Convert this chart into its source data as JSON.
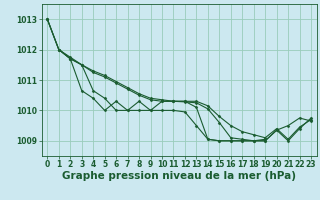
{
  "title": "Graphe pression niveau de la mer (hPa)",
  "bg_color": "#cce8f0",
  "grid_color": "#99ccbb",
  "line_color": "#1a5c30",
  "xlim": [
    -0.5,
    23.5
  ],
  "ylim": [
    1008.5,
    1013.5
  ],
  "yticks": [
    1009,
    1010,
    1011,
    1012,
    1013
  ],
  "xticks": [
    0,
    1,
    2,
    3,
    4,
    5,
    6,
    7,
    8,
    9,
    10,
    11,
    12,
    13,
    14,
    15,
    16,
    17,
    18,
    19,
    20,
    21,
    22,
    23
  ],
  "title_fontsize": 7.5,
  "tick_fontsize": 5.5,
  "lines": [
    {
      "x": [
        0,
        1,
        2,
        3,
        4,
        5,
        6,
        7,
        8,
        9,
        10,
        11,
        12,
        13,
        14,
        15,
        16,
        17,
        18,
        19,
        20,
        21,
        22,
        23
      ],
      "y": [
        1013.0,
        1012.0,
        1011.75,
        1011.5,
        1011.3,
        1011.15,
        1010.95,
        1010.75,
        1010.55,
        1010.4,
        1010.35,
        1010.3,
        1010.3,
        1010.3,
        1010.15,
        1009.8,
        1009.5,
        1009.3,
        1009.2,
        1009.1,
        1009.4,
        1009.05,
        1009.45,
        1009.7
      ]
    },
    {
      "x": [
        0,
        1,
        2,
        3,
        4,
        5,
        6,
        7,
        8,
        9,
        10,
        11,
        12,
        13,
        14,
        15,
        16,
        17,
        18,
        19,
        20,
        21,
        22,
        23
      ],
      "y": [
        1013.0,
        1012.0,
        1011.7,
        1011.5,
        1011.25,
        1011.1,
        1010.9,
        1010.7,
        1010.5,
        1010.35,
        1010.3,
        1010.3,
        1010.28,
        1010.25,
        1010.05,
        1009.6,
        1009.1,
        1009.05,
        1009.0,
        1009.0,
        1009.35,
        1009.0,
        1009.4,
        1009.75
      ]
    },
    {
      "x": [
        0,
        1,
        2,
        3,
        4,
        5,
        6,
        7,
        8,
        9,
        10,
        11,
        12,
        13,
        14,
        15,
        16,
        17,
        18,
        19,
        20,
        21,
        22,
        23
      ],
      "y": [
        1013.0,
        1012.0,
        1011.7,
        1011.5,
        1010.65,
        1010.4,
        1010.0,
        1010.0,
        1010.3,
        1010.0,
        1010.3,
        1010.3,
        1010.3,
        1010.1,
        1009.05,
        1009.0,
        1009.0,
        1009.0,
        1009.0,
        1009.0,
        1009.35,
        1009.5,
        1009.75,
        1009.65
      ]
    },
    {
      "x": [
        1,
        2,
        3,
        4,
        5,
        6,
        7,
        8,
        9,
        10,
        11,
        12,
        13,
        14,
        15,
        16,
        17,
        18,
        19
      ],
      "y": [
        1012.0,
        1011.7,
        1010.65,
        1010.4,
        1010.0,
        1010.3,
        1010.0,
        1010.0,
        1010.0,
        1010.0,
        1010.0,
        1009.95,
        1009.5,
        1009.05,
        1009.0,
        1009.0,
        1009.0,
        1009.0,
        1009.05
      ]
    }
  ]
}
